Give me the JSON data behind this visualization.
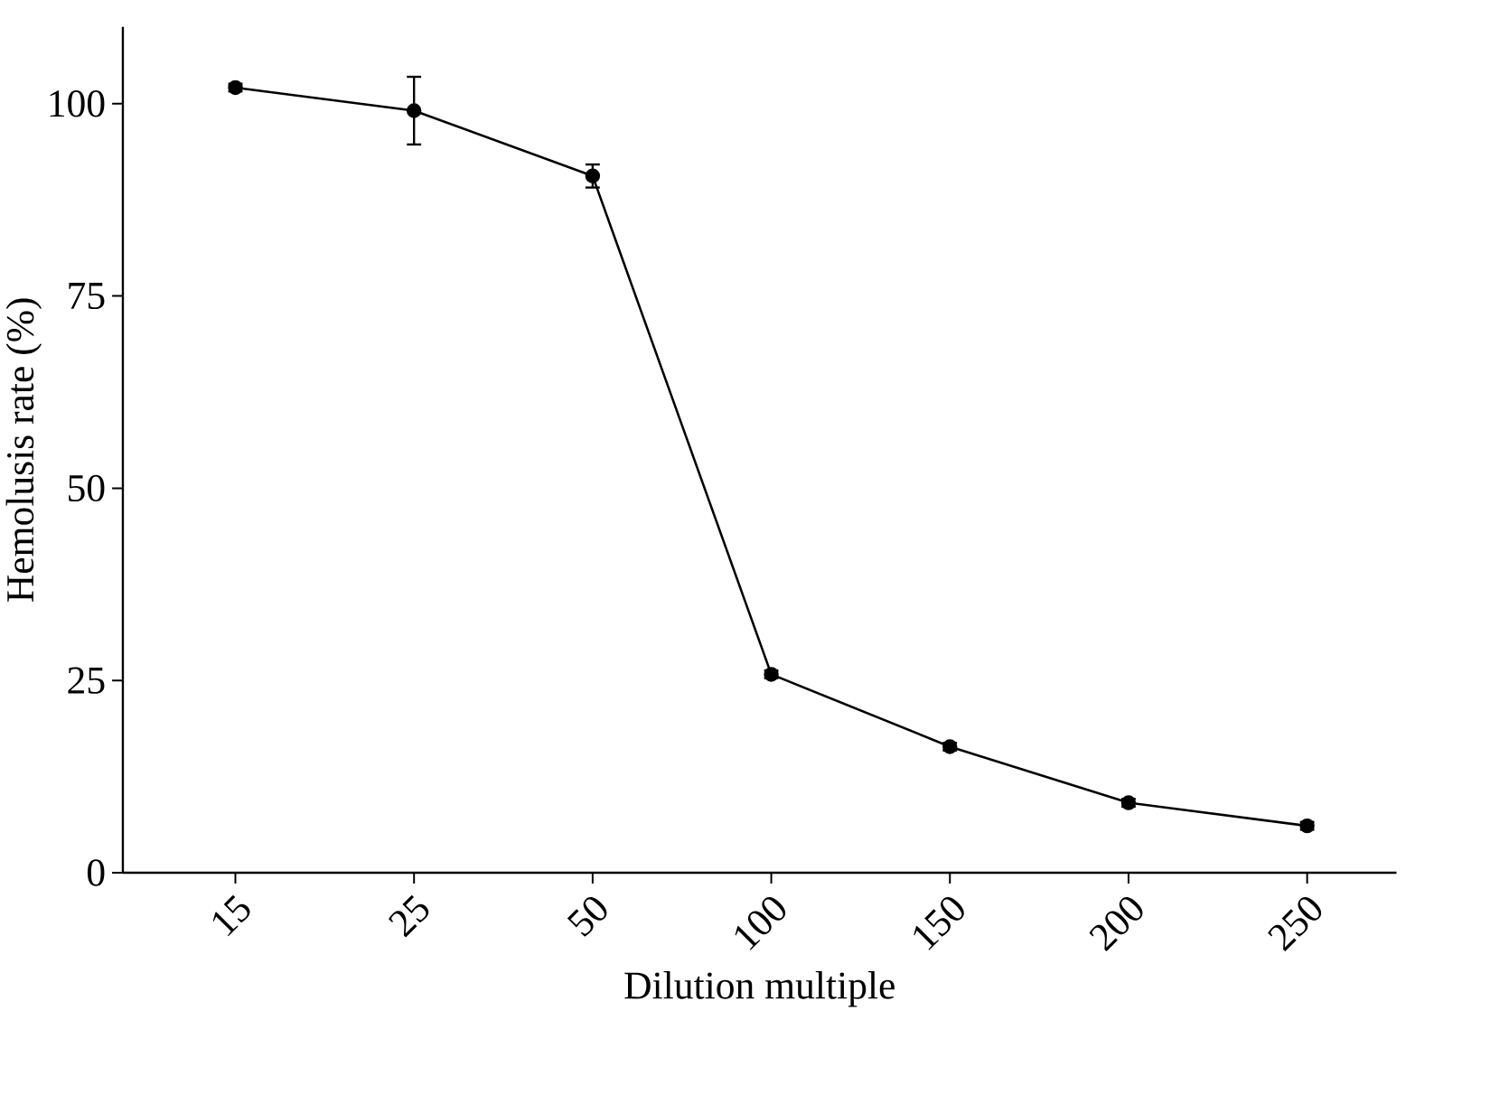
{
  "chart_data": {
    "type": "line",
    "xlabel": "Dilution multiple",
    "ylabel": "Hemolusis rate (%)",
    "categories": [
      "15",
      "25",
      "50",
      "100",
      "150",
      "200",
      "250"
    ],
    "values": [
      102.1,
      99.1,
      90.6,
      25.8,
      16.4,
      9.1,
      6.1
    ],
    "errors": [
      0.5,
      4.4,
      1.5,
      0.5,
      0.5,
      0.5,
      0.5
    ],
    "color": "#000000",
    "marker": "circle",
    "line_style": "solid",
    "ylim": [
      0,
      110
    ],
    "yticks": [
      0,
      25,
      50,
      75,
      100
    ],
    "grid": false
  }
}
